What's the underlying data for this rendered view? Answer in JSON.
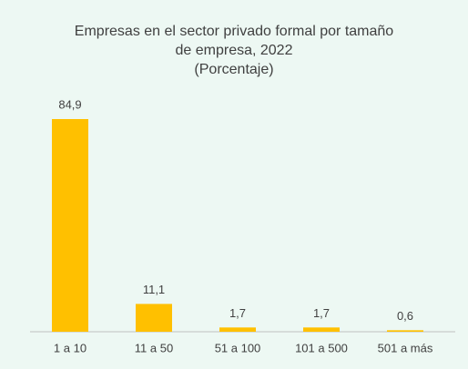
{
  "chart_data": {
    "type": "bar",
    "title": "Empresas en el sector privado formal por tamaño de empresa, 2022",
    "subtitle": "(Porcentaje)",
    "categories": [
      "1 a 10",
      "11 a 50",
      "51 a 100",
      "101 a 500",
      "501 a más"
    ],
    "values": [
      84.9,
      11.1,
      1.7,
      1.7,
      0.6
    ],
    "value_labels": [
      "84,9",
      "11,1",
      "1,7",
      "1,7",
      "0,6"
    ],
    "color": "#ffc000"
  }
}
